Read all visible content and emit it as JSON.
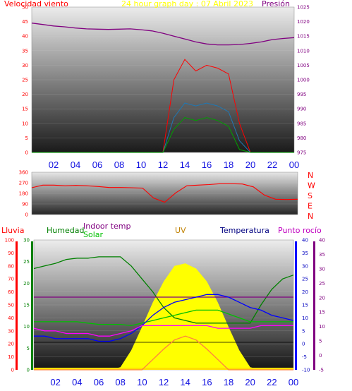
{
  "title": "24 hour graph day : 07 Abril 2023",
  "hours": [
    "02",
    "04",
    "06",
    "08",
    "10",
    "12",
    "14",
    "16",
    "18",
    "20",
    "22",
    "00"
  ],
  "colors": {
    "wind": "#ff0000",
    "gust_avg": "#1f78b4",
    "wind_low": "#00a000",
    "pressure": "#800080",
    "direction": "#ff0000",
    "rain": "#ff0000",
    "humidity": "#008000",
    "indoor": "#800080",
    "solar": "#00c000",
    "uv": "#ffff00",
    "temperature": "#0000ff",
    "dewpoint": "#ff00ff",
    "uvline": "#ff8040"
  },
  "chart_data": [
    {
      "type": "line",
      "name": "wind-pressure",
      "title": "24 hour graph day : 07 Abril 2023",
      "left_label": "Velocidad viento",
      "right_label": "Presión",
      "left_ticks": [
        "0",
        "5",
        "10",
        "15",
        "20",
        "25",
        "30",
        "35",
        "40",
        "45",
        "50"
      ],
      "right_ticks": [
        "975",
        "980",
        "985",
        "990",
        "995",
        "1000",
        "1005",
        "1010",
        "1015",
        "1020",
        "1025"
      ],
      "left_range": [
        0,
        50
      ],
      "right_range": [
        975,
        1025
      ],
      "x": [
        0,
        1,
        2,
        3,
        4,
        5,
        6,
        7,
        8,
        9,
        10,
        11,
        12,
        13,
        14,
        15,
        16,
        17,
        18,
        19,
        20,
        21,
        22,
        23,
        24
      ],
      "series": [
        {
          "key": "pressure",
          "axis": "right",
          "values": [
            1019.5,
            1019.0,
            1018.5,
            1018.2,
            1017.8,
            1017.5,
            1017.4,
            1017.3,
            1017.4,
            1017.5,
            1017.2,
            1016.8,
            1016.0,
            1015.0,
            1014.0,
            1013.0,
            1012.3,
            1012.0,
            1012.0,
            1012.1,
            1012.5,
            1013.0,
            1013.8,
            1014.2,
            1014.5
          ]
        },
        {
          "key": "wind",
          "axis": "left",
          "values": [
            0,
            0,
            0,
            0,
            0,
            0,
            0,
            0,
            0,
            0,
            0,
            0,
            0,
            25,
            32,
            28,
            30,
            29,
            27,
            10,
            0,
            0,
            0,
            0,
            0
          ]
        },
        {
          "key": "gust_avg",
          "axis": "left",
          "values": [
            0,
            0,
            0,
            0,
            0,
            0,
            0,
            0,
            0,
            0,
            0,
            0,
            0,
            12,
            17,
            16,
            17,
            16,
            14,
            4,
            0,
            0,
            0,
            0,
            0
          ]
        },
        {
          "key": "wind_low",
          "axis": "left",
          "values": [
            0,
            0,
            0,
            0,
            0,
            0,
            0,
            0,
            0,
            0,
            0,
            0,
            0,
            8,
            12,
            11,
            12,
            11,
            9,
            1,
            0,
            0,
            0,
            0,
            0
          ]
        }
      ]
    },
    {
      "type": "line",
      "name": "wind-direction",
      "left_ticks": [
        "0",
        "90",
        "180",
        "270",
        "360"
      ],
      "right_labels": [
        "N",
        "W",
        "S",
        "E",
        "N"
      ],
      "range": [
        0,
        360
      ],
      "x": [
        0,
        1,
        2,
        3,
        4,
        5,
        6,
        7,
        8,
        9,
        10,
        11,
        12,
        13,
        14,
        15,
        16,
        17,
        18,
        19,
        20,
        21,
        22,
        23,
        24
      ],
      "values": [
        228,
        250,
        250,
        245,
        248,
        245,
        238,
        230,
        230,
        228,
        225,
        140,
        105,
        185,
        245,
        250,
        255,
        262,
        262,
        260,
        235,
        165,
        130,
        128,
        130
      ]
    },
    {
      "type": "line",
      "name": "weather",
      "labels": {
        "rain": "Lluvia",
        "humidity": "Humedad",
        "indoor": "Indoor temp",
        "solar": "Solar",
        "uv": "UV",
        "temperature": "Temperatura",
        "dewpoint": "Punto rocío"
      },
      "axis_rain_ticks": [
        "0",
        "10",
        "20",
        "30",
        "40",
        "50",
        "60",
        "70",
        "80",
        "90",
        "100"
      ],
      "axis_hum_ticks": [
        "0",
        "5",
        "10",
        "15",
        "20",
        "25",
        "30"
      ],
      "axis_temp_ticks": [
        "-10",
        "-5",
        "0",
        "5",
        "10",
        "15",
        "20",
        "25",
        "30",
        "35",
        "40"
      ],
      "axis_dew_ticks": [
        "-5",
        "0",
        "5",
        "10",
        "15",
        "20",
        "25",
        "30",
        "35",
        "40"
      ],
      "x": [
        0,
        1,
        2,
        3,
        4,
        5,
        6,
        7,
        8,
        9,
        10,
        11,
        12,
        13,
        14,
        15,
        16,
        17,
        18,
        19,
        20,
        21,
        22,
        23,
        24
      ],
      "series": [
        {
          "key": "humidity",
          "range": [
            0,
            100
          ],
          "values": [
            78,
            80,
            82,
            85,
            86,
            86,
            87,
            87,
            87,
            80,
            70,
            60,
            48,
            40,
            38,
            36,
            36,
            36,
            36,
            36,
            36,
            50,
            62,
            70,
            73
          ]
        },
        {
          "key": "indoor",
          "range": [
            -10,
            40
          ],
          "values": [
            18,
            18,
            18,
            18,
            18,
            18,
            18,
            18,
            18,
            18,
            18,
            18,
            18,
            18,
            18,
            18,
            18,
            18,
            18,
            18,
            18,
            18,
            18,
            18,
            18
          ]
        },
        {
          "key": "solar",
          "range": [
            0,
            100
          ],
          "values": [
            37,
            37,
            37,
            37,
            37,
            36,
            35,
            35,
            35,
            34,
            36,
            38,
            40,
            42,
            44,
            46,
            46,
            46,
            43,
            40,
            37,
            37,
            37,
            37,
            37
          ]
        },
        {
          "key": "temperature",
          "range": [
            -10,
            40
          ],
          "values": [
            3,
            3,
            2,
            2,
            2,
            2,
            1,
            1,
            2,
            4,
            7,
            11,
            14,
            16,
            17,
            18,
            19,
            19,
            18,
            16,
            14,
            13,
            11,
            10,
            9
          ]
        },
        {
          "key": "dewpoint",
          "range": [
            -10,
            40
          ],
          "values": [
            6,
            5,
            5,
            4,
            4,
            4,
            3,
            3,
            4,
            5,
            7,
            7,
            7,
            7,
            7,
            7,
            7,
            6,
            6,
            6,
            6,
            7,
            7,
            7,
            7
          ]
        },
        {
          "key": "uv",
          "range": [
            0,
            1000
          ],
          "values": [
            0,
            0,
            0,
            0,
            0,
            0,
            0,
            0,
            20,
            150,
            330,
            520,
            680,
            800,
            820,
            780,
            680,
            520,
            330,
            150,
            20,
            0,
            0,
            0,
            0
          ]
        },
        {
          "key": "uvline",
          "range": [
            0,
            1000
          ],
          "values": [
            0,
            0,
            0,
            0,
            0,
            0,
            0,
            0,
            0,
            0,
            0,
            80,
            160,
            230,
            260,
            230,
            160,
            80,
            0,
            0,
            0,
            0,
            0,
            0,
            0
          ]
        }
      ]
    }
  ]
}
